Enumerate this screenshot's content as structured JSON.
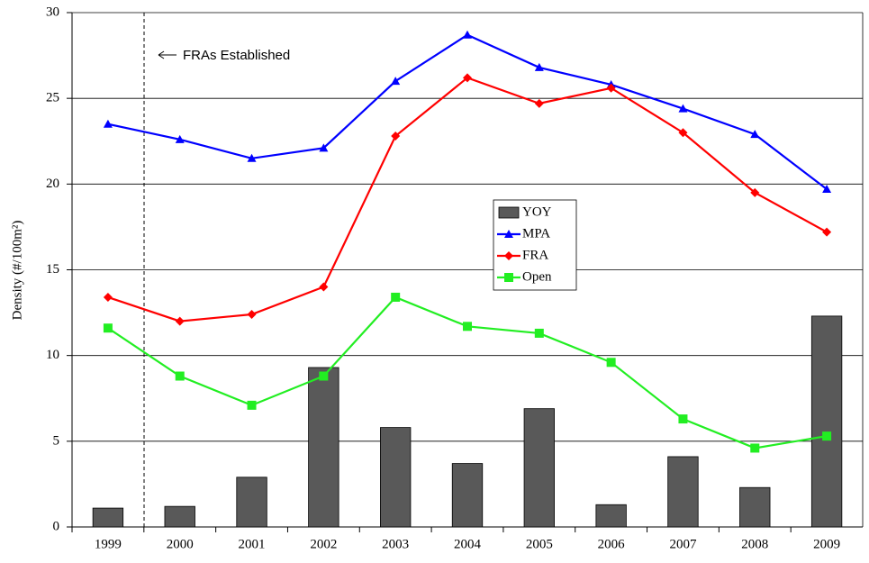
{
  "chart_data": {
    "type": "combo",
    "y_label": "Density (#/100m²)",
    "annotation": "FRAs Established",
    "categories": [
      "1999",
      "2000",
      "2001",
      "2002",
      "2003",
      "2004",
      "2005",
      "2006",
      "2007",
      "2008",
      "2009"
    ],
    "series": [
      {
        "name": "YOY",
        "type": "bar",
        "color": "#595959",
        "values": [
          1.1,
          1.2,
          2.9,
          9.3,
          5.8,
          3.7,
          6.9,
          1.3,
          4.1,
          2.3,
          12.3
        ]
      },
      {
        "name": "MPA",
        "type": "line",
        "marker": "triangle",
        "color": "#0000ff",
        "values": [
          23.5,
          22.6,
          21.5,
          22.1,
          26.0,
          28.7,
          26.8,
          25.8,
          24.4,
          22.9,
          19.7
        ]
      },
      {
        "name": "FRA",
        "type": "line",
        "marker": "diamond",
        "color": "#ff0000",
        "values": [
          13.4,
          12.0,
          12.4,
          14.0,
          22.8,
          26.2,
          24.7,
          25.6,
          23.0,
          19.5,
          17.2
        ]
      },
      {
        "name": "Open",
        "type": "line",
        "marker": "square",
        "color": "#22ee22",
        "values": [
          11.6,
          8.8,
          7.1,
          8.8,
          13.4,
          11.7,
          11.3,
          9.6,
          6.3,
          4.6,
          5.3
        ]
      }
    ],
    "ylim": [
      0,
      30
    ],
    "yticks": [
      0,
      5,
      10,
      15,
      20,
      25,
      30
    ],
    "grid": true
  }
}
